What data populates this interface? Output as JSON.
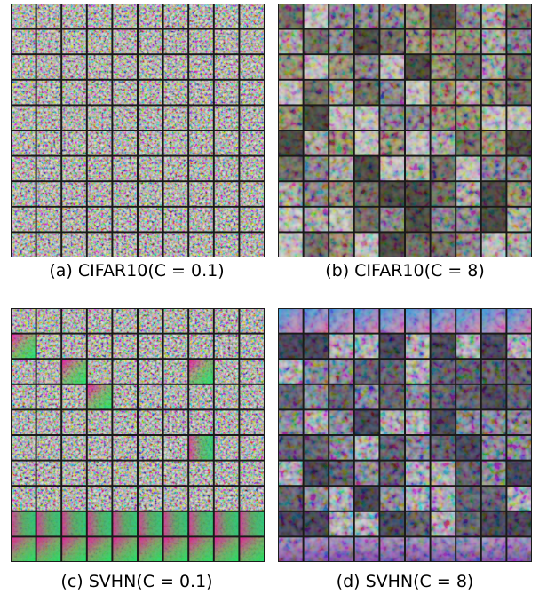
{
  "figure": {
    "panels": [
      {
        "caption": "(a) CIFAR10(C = 0.1)"
      },
      {
        "caption": "(b) CIFAR10(C = 8)"
      },
      {
        "caption": "(c) SVHN(C = 0.1)"
      },
      {
        "caption": "(d) SVHN(C = 8)"
      }
    ]
  }
}
